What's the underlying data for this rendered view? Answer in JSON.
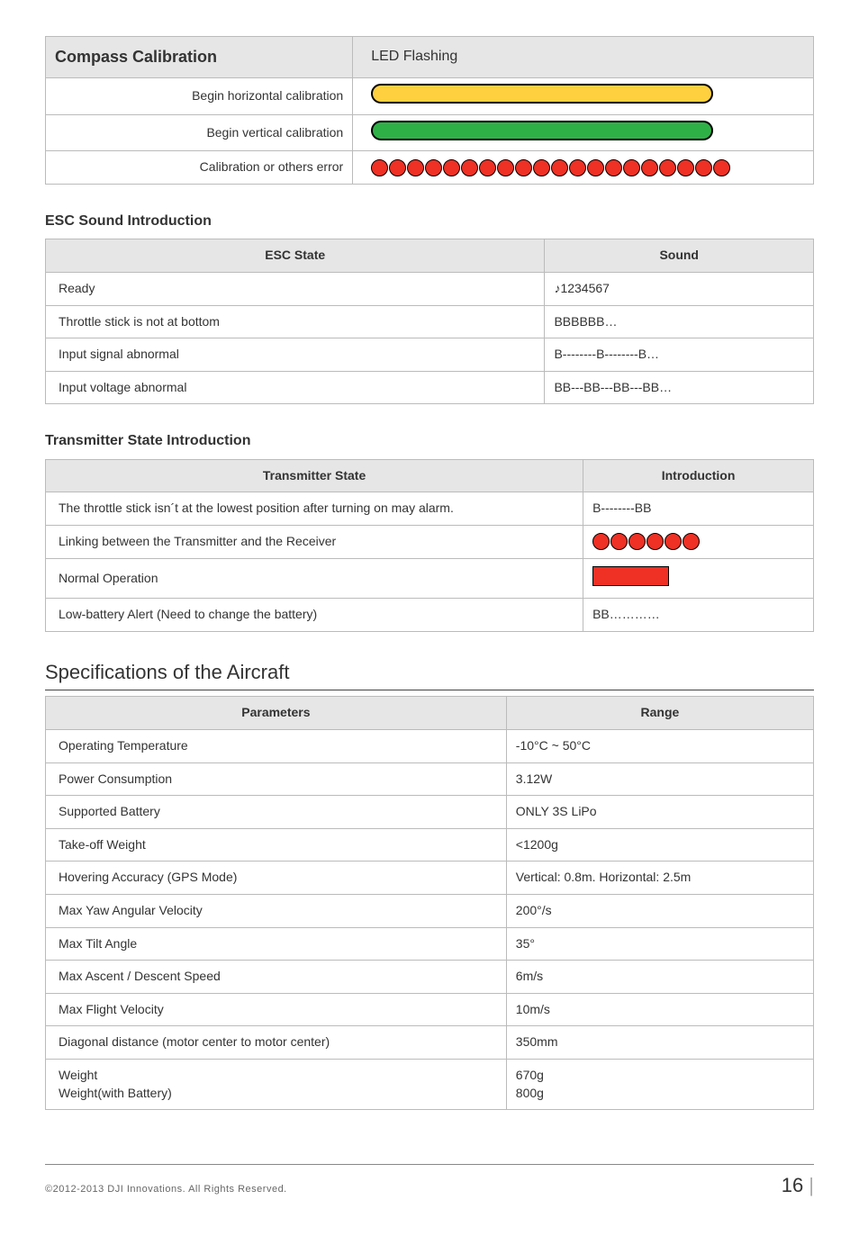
{
  "compass": {
    "headers": [
      "Compass Calibration",
      "LED Flashing"
    ],
    "rows": [
      {
        "label": "Begin horizontal calibration",
        "led": {
          "type": "capsule",
          "color": "#fed040"
        }
      },
      {
        "label": "Begin vertical calibration",
        "led": {
          "type": "capsule",
          "color": "#2fb047"
        }
      },
      {
        "label": "Calibration or others error",
        "led": {
          "type": "dots",
          "count": 20,
          "color": "#ef3024"
        }
      }
    ]
  },
  "esc": {
    "heading": "ESC Sound Introduction",
    "headers": [
      "ESC State",
      "Sound"
    ],
    "rows": [
      {
        "state": "Ready",
        "sound": "♪1234567"
      },
      {
        "state": "Throttle stick is not at bottom",
        "sound": "BBBBBB…"
      },
      {
        "state": "Input signal abnormal",
        "sound": "B--------B--------B…"
      },
      {
        "state": "Input voltage abnormal",
        "sound": "BB---BB---BB---BB…"
      }
    ]
  },
  "transmitter": {
    "heading": "Transmitter State Introduction",
    "headers": [
      "Transmitter State",
      "Introduction"
    ],
    "rows": [
      {
        "state": "The throttle stick isn´t at the lowest position after turning on may alarm.",
        "intro": {
          "type": "text",
          "value": "B--------BB"
        }
      },
      {
        "state": "Linking between the Transmitter and the Receiver",
        "intro": {
          "type": "dots",
          "count": 6,
          "color": "#ef3024"
        }
      },
      {
        "state": "Normal Operation",
        "intro": {
          "type": "square",
          "color": "#ef3024"
        }
      },
      {
        "state": "Low-battery Alert (Need to change the battery)",
        "intro": {
          "type": "text",
          "value": "BB…………"
        }
      }
    ]
  },
  "spec": {
    "heading": "Specifications of the Aircraft",
    "headers": [
      "Parameters",
      "Range"
    ],
    "rows": [
      {
        "param": "Operating Temperature",
        "range": "-10°C ~ 50°C"
      },
      {
        "param": "Power Consumption",
        "range": "3.12W"
      },
      {
        "param": "Supported Battery",
        "range": "ONLY 3S LiPo"
      },
      {
        "param": "Take-off Weight",
        "range": "<1200g"
      },
      {
        "param": "Hovering Accuracy (GPS Mode)",
        "range": "Vertical:   0.8m. Horizontal:   2.5m"
      },
      {
        "param": "Max Yaw Angular Velocity",
        "range": "200°/s"
      },
      {
        "param": "Max Tilt Angle",
        "range": "35°"
      },
      {
        "param": "Max Ascent / Descent Speed",
        "range": "6m/s"
      },
      {
        "param": "Max Flight Velocity",
        "range": "10m/s"
      },
      {
        "param": "Diagonal distance (motor center to motor center)",
        "range": "350mm"
      },
      {
        "param": "Weight\nWeight(with Battery)",
        "range": "670g\n800g"
      }
    ]
  },
  "footer": {
    "copyright": "©2012-2013  DJI  Innovations.  All  Rights  Reserved.",
    "page": "16"
  }
}
